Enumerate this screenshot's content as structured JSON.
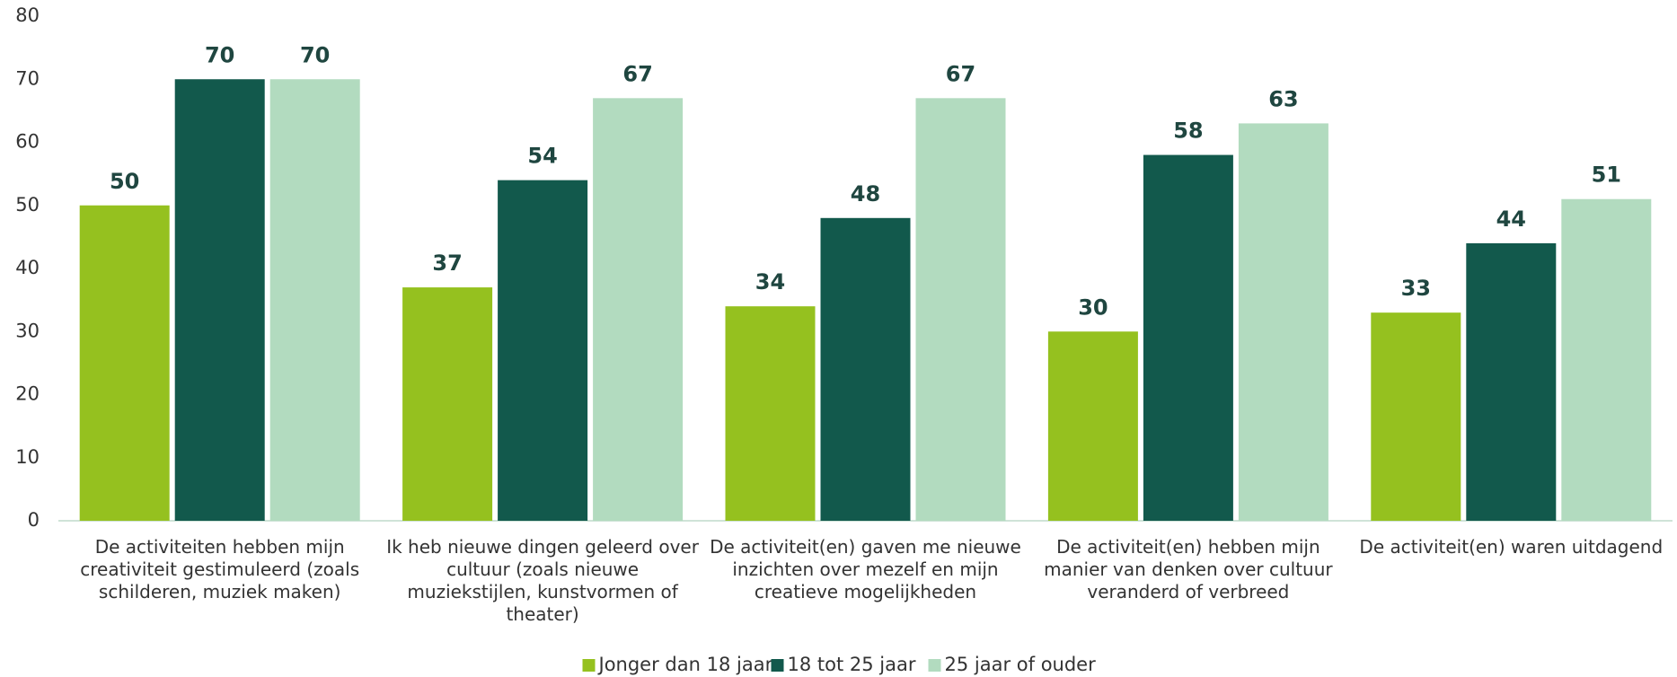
{
  "chart_data": {
    "type": "bar",
    "categories": [
      "De activiteiten hebben mijn creativiteit gestimuleerd (zoals schilderen, muziek maken)",
      "Ik heb nieuwe dingen geleerd over cultuur (zoals nieuwe muziekstijlen, kunstvormen of theater)",
      "De activiteit(en) gaven me nieuwe inzichten over mezelf en mijn creatieve mogelijkheden",
      "De activiteit(en) hebben mijn manier van denken over cultuur veranderd of verbreed",
      "De activiteit(en) waren uitdagend"
    ],
    "series": [
      {
        "name": "Jonger dan 18 jaar",
        "color": "#95c11f",
        "values": [
          50,
          37,
          34,
          30,
          33
        ]
      },
      {
        "name": "18 tot 25 jaar",
        "color": "#12594c",
        "values": [
          70,
          54,
          48,
          58,
          44
        ]
      },
      {
        "name": "25 jaar of ouder",
        "color": "#b2dbbf",
        "values": [
          70,
          67,
          67,
          63,
          51
        ]
      }
    ],
    "ylim": [
      0,
      80
    ],
    "yticks": [
      0,
      10,
      20,
      30,
      40,
      50,
      60,
      70,
      80
    ],
    "grid": false,
    "legend": "bottom"
  }
}
